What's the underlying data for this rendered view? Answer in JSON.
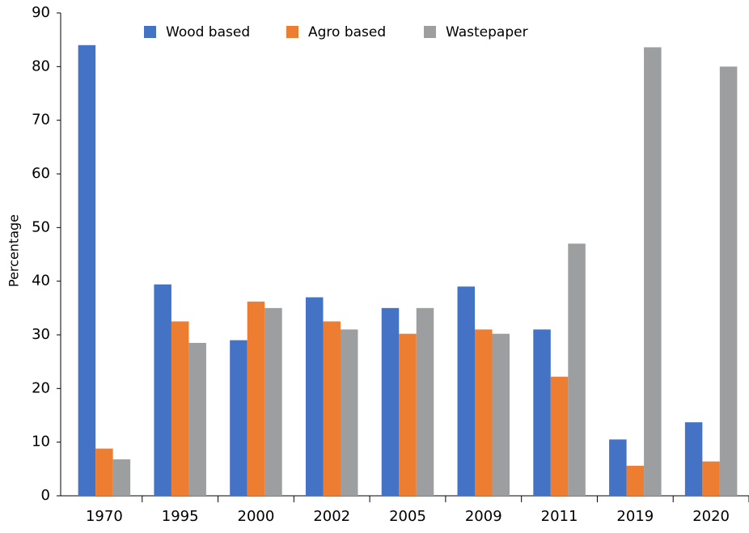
{
  "chart_data": {
    "type": "bar",
    "y_label": "Percentage",
    "categories": [
      "1970",
      "1995",
      "2000",
      "2002",
      "2005",
      "2009",
      "2011",
      "2019",
      "2020"
    ],
    "series": [
      {
        "name": "Wood based",
        "color": "#4472c4",
        "values": [
          84,
          39.4,
          29,
          37,
          35,
          39,
          31,
          10.5,
          13.7
        ]
      },
      {
        "name": "Agro based",
        "color": "#ed7d31",
        "values": [
          8.8,
          32.5,
          36.2,
          32.5,
          30.2,
          31,
          22.2,
          5.6,
          6.4
        ]
      },
      {
        "name": "Wastepaper",
        "color": "#9c9e9f",
        "values": [
          6.8,
          28.5,
          35,
          31,
          35,
          30.2,
          47,
          83.6,
          80
        ]
      }
    ],
    "ylim": [
      0,
      90
    ],
    "yticks": [
      0,
      10,
      20,
      30,
      40,
      50,
      60,
      70,
      80,
      90
    ],
    "legend": "top"
  }
}
